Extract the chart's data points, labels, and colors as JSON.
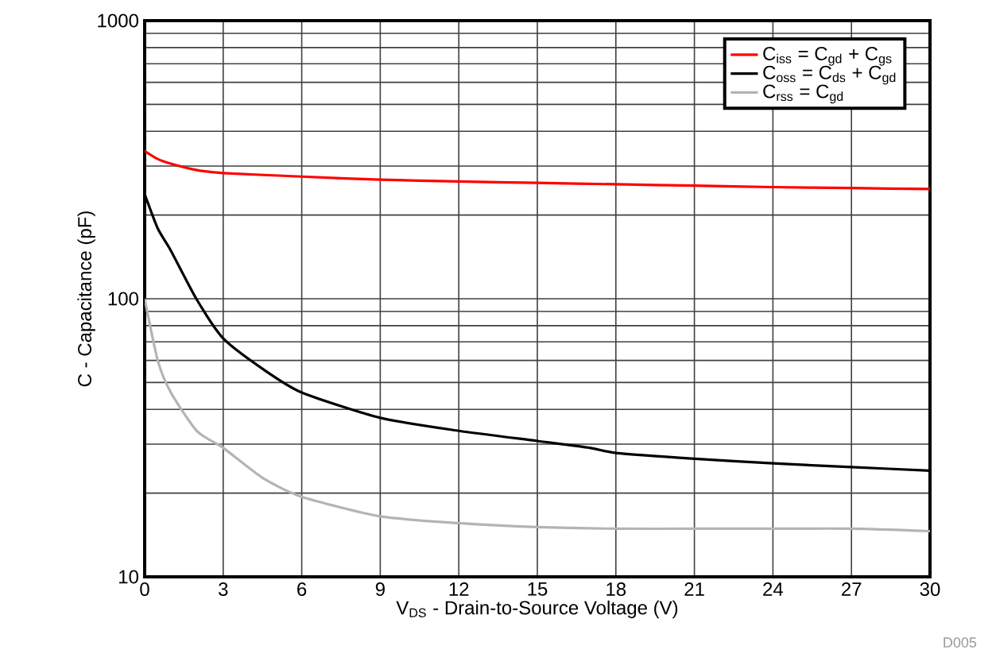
{
  "chart_data": {
    "type": "line",
    "xlabel": "V$_{DS}$ - Drain-to-Source Voltage (V)",
    "ylabel": "C - Capacitance (pF)",
    "annotations": [
      "D005"
    ],
    "log": "y",
    "grid": true,
    "legend": "top right",
    "marker": "none",
    "line_style": "solid",
    "xlim": [
      0,
      30
    ],
    "ylim": [
      10,
      1000
    ],
    "xticks": [
      0,
      3,
      6,
      9,
      12,
      15,
      18,
      21,
      24,
      27,
      30
    ],
    "yticks": [
      10,
      100,
      1000
    ],
    "series": [
      {
        "name": "C$_{iss}$ = C$_{gd}$ + C$_{gs}$",
        "color": "#ff0000",
        "x": [
          0,
          0.5,
          1,
          2,
          3,
          6,
          9,
          12,
          15,
          18,
          21,
          24,
          27,
          30
        ],
        "values": [
          340,
          318,
          306,
          290,
          283,
          275,
          268,
          264,
          261,
          258,
          255,
          252,
          250,
          248
        ]
      },
      {
        "name": "C$_{oss}$ = C$_{ds}$ + C$_{gd}$",
        "color": "#000000",
        "x": [
          0,
          0.5,
          1,
          2,
          3,
          4.5,
          6,
          9,
          12,
          15,
          17,
          18,
          21,
          24,
          27,
          30
        ],
        "values": [
          238,
          179,
          149,
          99,
          72,
          56,
          46,
          37.3,
          33.5,
          30.8,
          29.1,
          27.9,
          26.6,
          25.6,
          24.8,
          24.1
        ]
      },
      {
        "name": "C$_{rss}$ = C$_{gd}$",
        "color": "#b4b4b4",
        "x": [
          0,
          0.5,
          1,
          2,
          3,
          4.5,
          6,
          9,
          12,
          15,
          18,
          21,
          24,
          27,
          30
        ],
        "values": [
          100,
          60,
          46,
          33.4,
          29.1,
          22.7,
          19.4,
          16.5,
          15.6,
          15.1,
          14.9,
          14.9,
          14.9,
          14.9,
          14.6
        ]
      }
    ]
  }
}
